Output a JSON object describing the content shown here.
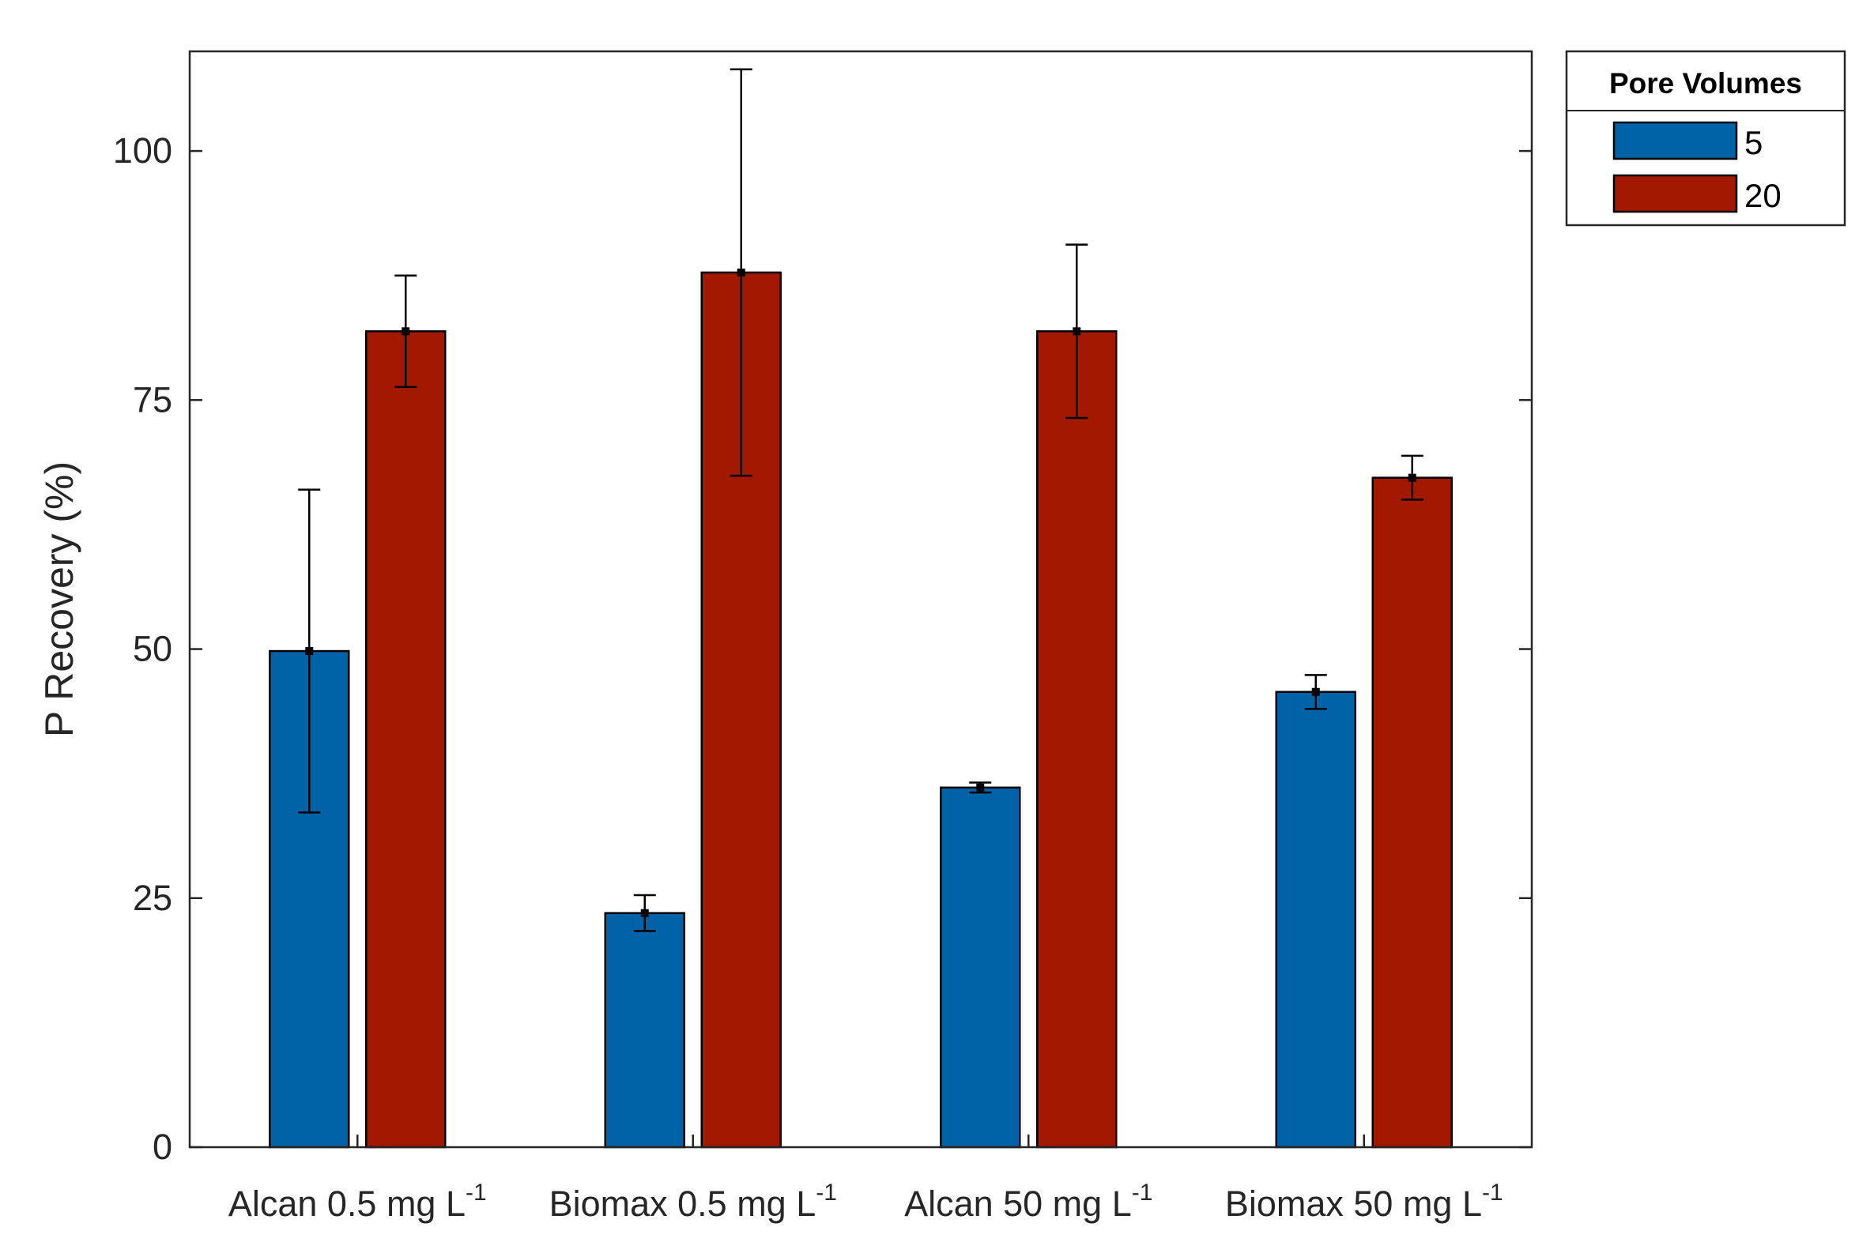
{
  "chart_data": {
    "type": "bar",
    "title": "",
    "xlabel": "",
    "ylabel": "P Recovery (%)",
    "ylim": [
      0,
      110
    ],
    "yticks": [
      0,
      25,
      50,
      75,
      100
    ],
    "grid": false,
    "categories": [
      {
        "name": "Alcan 0.5 mg L",
        "sup": "-1"
      },
      {
        "name": "Biomax 0.5 mg L",
        "sup": "-1"
      },
      {
        "name": "Alcan 50 mg L",
        "sup": "-1"
      },
      {
        "name": "Biomax 50 mg L",
        "sup": "-1"
      }
    ],
    "series": [
      {
        "name": "5",
        "color": "#0062a7",
        "values": [
          49.8,
          23.5,
          36.1,
          45.7
        ],
        "errors": [
          16.2,
          1.8,
          0.5,
          1.7
        ]
      },
      {
        "name": "20",
        "color": "#a21800",
        "values": [
          81.9,
          87.8,
          81.9,
          67.2
        ],
        "errors": [
          5.6,
          20.4,
          8.7,
          2.2
        ]
      }
    ],
    "legend": {
      "title": "Pore Volumes",
      "placement": "outside-top-right"
    }
  }
}
